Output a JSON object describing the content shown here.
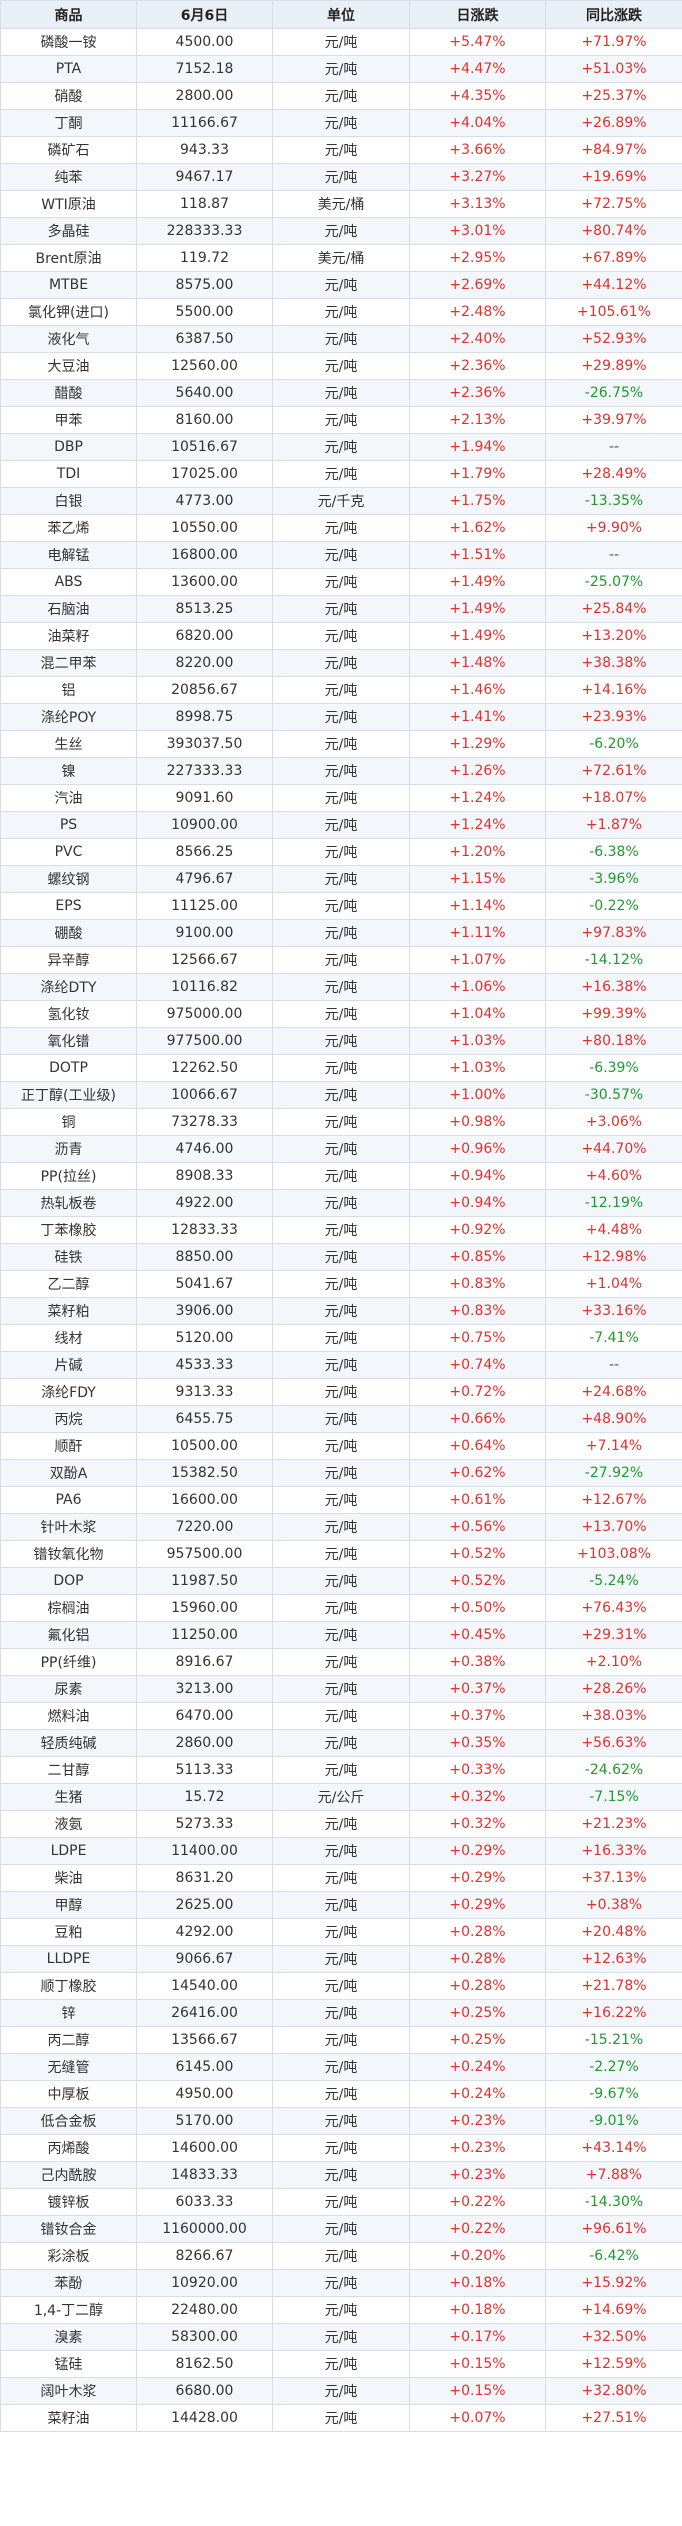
{
  "table": {
    "headers": [
      "商品",
      "6月6日",
      "单位",
      "日涨跌",
      "同比涨跌"
    ],
    "rows": [
      [
        "磷酸一铵",
        "4500.00",
        "元/吨",
        "+5.47%",
        "+71.97%"
      ],
      [
        "PTA",
        "7152.18",
        "元/吨",
        "+4.47%",
        "+51.03%"
      ],
      [
        "硝酸",
        "2800.00",
        "元/吨",
        "+4.35%",
        "+25.37%"
      ],
      [
        "丁酮",
        "11166.67",
        "元/吨",
        "+4.04%",
        "+26.89%"
      ],
      [
        "磷矿石",
        "943.33",
        "元/吨",
        "+3.66%",
        "+84.97%"
      ],
      [
        "纯苯",
        "9467.17",
        "元/吨",
        "+3.27%",
        "+19.69%"
      ],
      [
        "WTI原油",
        "118.87",
        "美元/桶",
        "+3.13%",
        "+72.75%"
      ],
      [
        "多晶硅",
        "228333.33",
        "元/吨",
        "+3.01%",
        "+80.74%"
      ],
      [
        "Brent原油",
        "119.72",
        "美元/桶",
        "+2.95%",
        "+67.89%"
      ],
      [
        "MTBE",
        "8575.00",
        "元/吨",
        "+2.69%",
        "+44.12%"
      ],
      [
        "氯化钾(进口)",
        "5500.00",
        "元/吨",
        "+2.48%",
        "+105.61%"
      ],
      [
        "液化气",
        "6387.50",
        "元/吨",
        "+2.40%",
        "+52.93%"
      ],
      [
        "大豆油",
        "12560.00",
        "元/吨",
        "+2.36%",
        "+29.89%"
      ],
      [
        "醋酸",
        "5640.00",
        "元/吨",
        "+2.36%",
        "-26.75%"
      ],
      [
        "甲苯",
        "8160.00",
        "元/吨",
        "+2.13%",
        "+39.97%"
      ],
      [
        "DBP",
        "10516.67",
        "元/吨",
        "+1.94%",
        "--"
      ],
      [
        "TDI",
        "17025.00",
        "元/吨",
        "+1.79%",
        "+28.49%"
      ],
      [
        "白银",
        "4773.00",
        "元/千克",
        "+1.75%",
        "-13.35%"
      ],
      [
        "苯乙烯",
        "10550.00",
        "元/吨",
        "+1.62%",
        "+9.90%"
      ],
      [
        "电解锰",
        "16800.00",
        "元/吨",
        "+1.51%",
        "--"
      ],
      [
        "ABS",
        "13600.00",
        "元/吨",
        "+1.49%",
        "-25.07%"
      ],
      [
        "石脑油",
        "8513.25",
        "元/吨",
        "+1.49%",
        "+25.84%"
      ],
      [
        "油菜籽",
        "6820.00",
        "元/吨",
        "+1.49%",
        "+13.20%"
      ],
      [
        "混二甲苯",
        "8220.00",
        "元/吨",
        "+1.48%",
        "+38.38%"
      ],
      [
        "铝",
        "20856.67",
        "元/吨",
        "+1.46%",
        "+14.16%"
      ],
      [
        "涤纶POY",
        "8998.75",
        "元/吨",
        "+1.41%",
        "+23.93%"
      ],
      [
        "生丝",
        "393037.50",
        "元/吨",
        "+1.29%",
        "-6.20%"
      ],
      [
        "镍",
        "227333.33",
        "元/吨",
        "+1.26%",
        "+72.61%"
      ],
      [
        "汽油",
        "9091.60",
        "元/吨",
        "+1.24%",
        "+18.07%"
      ],
      [
        "PS",
        "10900.00",
        "元/吨",
        "+1.24%",
        "+1.87%"
      ],
      [
        "PVC",
        "8566.25",
        "元/吨",
        "+1.20%",
        "-6.38%"
      ],
      [
        "螺纹钢",
        "4796.67",
        "元/吨",
        "+1.15%",
        "-3.96%"
      ],
      [
        "EPS",
        "11125.00",
        "元/吨",
        "+1.14%",
        "-0.22%"
      ],
      [
        "硼酸",
        "9100.00",
        "元/吨",
        "+1.11%",
        "+97.83%"
      ],
      [
        "异辛醇",
        "12566.67",
        "元/吨",
        "+1.07%",
        "-14.12%"
      ],
      [
        "涤纶DTY",
        "10116.82",
        "元/吨",
        "+1.06%",
        "+16.38%"
      ],
      [
        "氢化钕",
        "975000.00",
        "元/吨",
        "+1.04%",
        "+99.39%"
      ],
      [
        "氧化镨",
        "977500.00",
        "元/吨",
        "+1.03%",
        "+80.18%"
      ],
      [
        "DOTP",
        "12262.50",
        "元/吨",
        "+1.03%",
        "-6.39%"
      ],
      [
        "正丁醇(工业级)",
        "10066.67",
        "元/吨",
        "+1.00%",
        "-30.57%"
      ],
      [
        "铜",
        "73278.33",
        "元/吨",
        "+0.98%",
        "+3.06%"
      ],
      [
        "沥青",
        "4746.00",
        "元/吨",
        "+0.96%",
        "+44.70%"
      ],
      [
        "PP(拉丝)",
        "8908.33",
        "元/吨",
        "+0.94%",
        "+4.60%"
      ],
      [
        "热轧板卷",
        "4922.00",
        "元/吨",
        "+0.94%",
        "-12.19%"
      ],
      [
        "丁苯橡胶",
        "12833.33",
        "元/吨",
        "+0.92%",
        "+4.48%"
      ],
      [
        "硅铁",
        "8850.00",
        "元/吨",
        "+0.85%",
        "+12.98%"
      ],
      [
        "乙二醇",
        "5041.67",
        "元/吨",
        "+0.83%",
        "+1.04%"
      ],
      [
        "菜籽粕",
        "3906.00",
        "元/吨",
        "+0.83%",
        "+33.16%"
      ],
      [
        "线材",
        "5120.00",
        "元/吨",
        "+0.75%",
        "-7.41%"
      ],
      [
        "片碱",
        "4533.33",
        "元/吨",
        "+0.74%",
        "--"
      ],
      [
        "涤纶FDY",
        "9313.33",
        "元/吨",
        "+0.72%",
        "+24.68%"
      ],
      [
        "丙烷",
        "6455.75",
        "元/吨",
        "+0.66%",
        "+48.90%"
      ],
      [
        "顺酐",
        "10500.00",
        "元/吨",
        "+0.64%",
        "+7.14%"
      ],
      [
        "双酚A",
        "15382.50",
        "元/吨",
        "+0.62%",
        "-27.92%"
      ],
      [
        "PA6",
        "16600.00",
        "元/吨",
        "+0.61%",
        "+12.67%"
      ],
      [
        "针叶木浆",
        "7220.00",
        "元/吨",
        "+0.56%",
        "+13.70%"
      ],
      [
        "镨钕氧化物",
        "957500.00",
        "元/吨",
        "+0.52%",
        "+103.08%"
      ],
      [
        "DOP",
        "11987.50",
        "元/吨",
        "+0.52%",
        "-5.24%"
      ],
      [
        "棕榈油",
        "15960.00",
        "元/吨",
        "+0.50%",
        "+76.43%"
      ],
      [
        "氟化铝",
        "11250.00",
        "元/吨",
        "+0.45%",
        "+29.31%"
      ],
      [
        "PP(纤维)",
        "8916.67",
        "元/吨",
        "+0.38%",
        "+2.10%"
      ],
      [
        "尿素",
        "3213.00",
        "元/吨",
        "+0.37%",
        "+28.26%"
      ],
      [
        "燃料油",
        "6470.00",
        "元/吨",
        "+0.37%",
        "+38.03%"
      ],
      [
        "轻质纯碱",
        "2860.00",
        "元/吨",
        "+0.35%",
        "+56.63%"
      ],
      [
        "二甘醇",
        "5113.33",
        "元/吨",
        "+0.33%",
        "-24.62%"
      ],
      [
        "生猪",
        "15.72",
        "元/公斤",
        "+0.32%",
        "-7.15%"
      ],
      [
        "液氨",
        "5273.33",
        "元/吨",
        "+0.32%",
        "+21.23%"
      ],
      [
        "LDPE",
        "11400.00",
        "元/吨",
        "+0.29%",
        "+16.33%"
      ],
      [
        "柴油",
        "8631.20",
        "元/吨",
        "+0.29%",
        "+37.13%"
      ],
      [
        "甲醇",
        "2625.00",
        "元/吨",
        "+0.29%",
        "+0.38%"
      ],
      [
        "豆粕",
        "4292.00",
        "元/吨",
        "+0.28%",
        "+20.48%"
      ],
      [
        "LLDPE",
        "9066.67",
        "元/吨",
        "+0.28%",
        "+12.63%"
      ],
      [
        "顺丁橡胶",
        "14540.00",
        "元/吨",
        "+0.28%",
        "+21.78%"
      ],
      [
        "锌",
        "26416.00",
        "元/吨",
        "+0.25%",
        "+16.22%"
      ],
      [
        "丙二醇",
        "13566.67",
        "元/吨",
        "+0.25%",
        "-15.21%"
      ],
      [
        "无缝管",
        "6145.00",
        "元/吨",
        "+0.24%",
        "-2.27%"
      ],
      [
        "中厚板",
        "4950.00",
        "元/吨",
        "+0.24%",
        "-9.67%"
      ],
      [
        "低合金板",
        "5170.00",
        "元/吨",
        "+0.23%",
        "-9.01%"
      ],
      [
        "丙烯酸",
        "14600.00",
        "元/吨",
        "+0.23%",
        "+43.14%"
      ],
      [
        "己内酰胺",
        "14833.33",
        "元/吨",
        "+0.23%",
        "+7.88%"
      ],
      [
        "镀锌板",
        "6033.33",
        "元/吨",
        "+0.22%",
        "-14.30%"
      ],
      [
        "镨钕合金",
        "1160000.00",
        "元/吨",
        "+0.22%",
        "+96.61%"
      ],
      [
        "彩涂板",
        "8266.67",
        "元/吨",
        "+0.20%",
        "-6.42%"
      ],
      [
        "苯酚",
        "10920.00",
        "元/吨",
        "+0.18%",
        "+15.92%"
      ],
      [
        "1,4-丁二醇",
        "22480.00",
        "元/吨",
        "+0.18%",
        "+14.69%"
      ],
      [
        "溴素",
        "58300.00",
        "元/吨",
        "+0.17%",
        "+32.50%"
      ],
      [
        "锰硅",
        "8162.50",
        "元/吨",
        "+0.15%",
        "+12.59%"
      ],
      [
        "阔叶木浆",
        "6680.00",
        "元/吨",
        "+0.15%",
        "+32.80%"
      ],
      [
        "菜籽油",
        "14428.00",
        "元/吨",
        "+0.07%",
        "+27.51%"
      ]
    ]
  },
  "colors": {
    "up": "#e0312b",
    "down": "#1f9a2c",
    "header_bg": "#e9eff6",
    "stripe_bg": "#f3f6fa",
    "border": "#d6dde6"
  }
}
